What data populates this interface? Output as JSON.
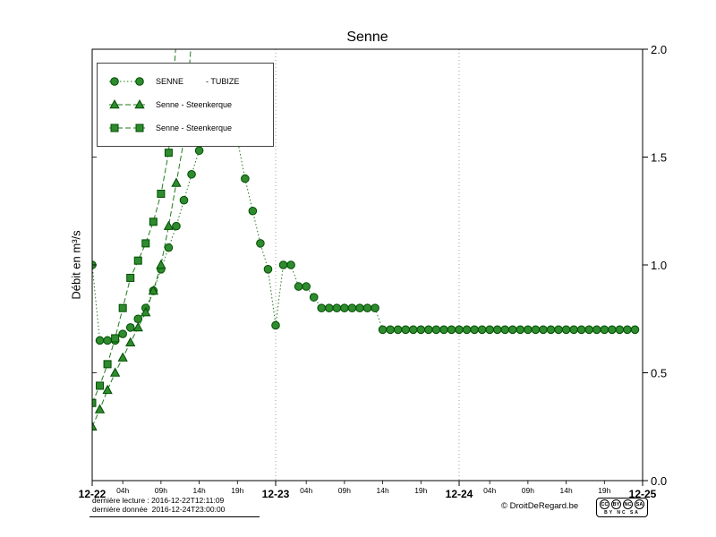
{
  "chart_data": {
    "type": "line",
    "title": "Senne",
    "ylabel": "Débit en m³/s",
    "ylim": [
      0.0,
      2.0
    ],
    "yticks": [
      0.0,
      0.5,
      1.0,
      1.5,
      2.0
    ],
    "x_days": [
      "12-22",
      "12-23",
      "12-24",
      "12-25"
    ],
    "x_minor_hours": [
      "04h",
      "09h",
      "14h",
      "19h"
    ],
    "x_unit": "hours since 12-22 00:00, one point per hour",
    "x_total_hours": 72,
    "grid": "vertical dotted lines at day boundaries",
    "legend_position": "upper left",
    "line_color": "#1f7a1f",
    "marker_fill": "#2e8b2e",
    "marker_edge": "#004d00",
    "series": [
      {
        "name": "SENNE          - TUBIZE",
        "marker": "circle",
        "line": "dotted",
        "values": [
          1.0,
          0.65,
          0.65,
          0.65,
          0.68,
          0.71,
          0.75,
          0.8,
          0.88,
          0.98,
          1.08,
          1.18,
          1.3,
          1.42,
          1.53,
          1.63,
          1.7,
          1.74,
          1.72,
          1.58,
          1.4,
          1.25,
          1.1,
          0.98,
          0.72,
          1.0,
          1.0,
          0.9,
          0.9,
          0.85,
          0.8,
          0.8,
          0.8,
          0.8,
          0.8,
          0.8,
          0.8,
          0.8,
          0.7,
          0.7,
          0.7,
          0.7,
          0.7,
          0.7,
          0.7,
          0.7,
          0.7,
          0.7,
          0.7,
          0.7,
          0.7,
          0.7,
          0.7,
          0.7,
          0.7,
          0.7,
          0.7,
          0.7,
          0.7,
          0.7,
          0.7,
          0.7,
          0.7,
          0.7,
          0.7,
          0.7,
          0.7,
          0.7,
          0.7,
          0.7,
          0.7,
          0.7
        ]
      },
      {
        "name": "Senne - Steenkerque",
        "marker": "triangle",
        "line": "dashed",
        "values": [
          0.25,
          0.33,
          0.42,
          0.5,
          0.57,
          0.64,
          0.71,
          0.78,
          0.88,
          1.0,
          1.18,
          1.38,
          1.58,
          2.05
        ]
      },
      {
        "name": "Senne - Steenkerque",
        "marker": "square",
        "line": "dashed",
        "values": [
          0.36,
          0.44,
          0.54,
          0.66,
          0.8,
          0.94,
          1.02,
          1.1,
          1.2,
          1.33,
          1.52,
          2.05
        ]
      }
    ]
  },
  "footer": {
    "last_reading": "dernière lecture : 2016-12-22T12:11:09",
    "last_data": "dernière donnée  2016-12-24T23:00:00",
    "copyright": "© DroitDeRegard.be",
    "license": {
      "icons": [
        "CC",
        "BY",
        "NC",
        "SA"
      ],
      "caption": "BY NC SA"
    }
  }
}
